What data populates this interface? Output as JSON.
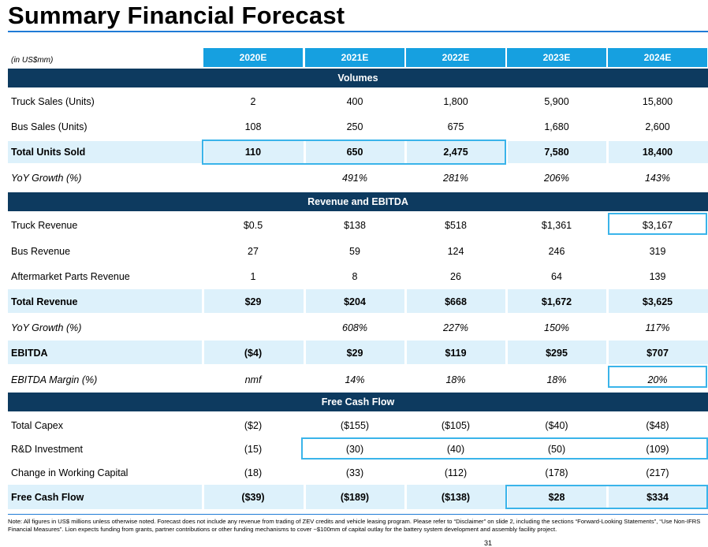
{
  "title": "Summary Financial Forecast",
  "units_note": "(in US$mm)",
  "years": [
    "2020E",
    "2021E",
    "2022E",
    "2023E",
    "2024E"
  ],
  "sections": {
    "volumes": "Volumes",
    "revenue": "Revenue and EBITDA",
    "fcf": "Free Cash Flow"
  },
  "rows": {
    "truck_sales": {
      "label": "Truck Sales (Units)",
      "values": [
        "2",
        "400",
        "1,800",
        "5,900",
        "15,800"
      ]
    },
    "bus_sales": {
      "label": "Bus Sales (Units)",
      "values": [
        "108",
        "250",
        "675",
        "1,680",
        "2,600"
      ]
    },
    "total_units": {
      "label": "Total Units Sold",
      "values": [
        "110",
        "650",
        "2,475",
        "7,580",
        "18,400"
      ]
    },
    "yoy_units": {
      "label": "YoY Growth (%)",
      "values": [
        "",
        "491%",
        "281%",
        "206%",
        "143%"
      ]
    },
    "truck_rev": {
      "label": "Truck Revenue",
      "values": [
        "$0.5",
        "$138",
        "$518",
        "$1,361",
        "$3,167"
      ]
    },
    "bus_rev": {
      "label": "Bus Revenue",
      "values": [
        "27",
        "59",
        "124",
        "246",
        "319"
      ]
    },
    "aftermarket": {
      "label": "Aftermarket Parts Revenue",
      "values": [
        "1",
        "8",
        "26",
        "64",
        "139"
      ]
    },
    "total_rev": {
      "label": "Total Revenue",
      "values": [
        "$29",
        "$204",
        "$668",
        "$1,672",
        "$3,625"
      ]
    },
    "yoy_rev": {
      "label": "YoY Growth (%)",
      "values": [
        "",
        "608%",
        "227%",
        "150%",
        "117%"
      ]
    },
    "ebitda": {
      "label": "EBITDA",
      "values": [
        "($4)",
        "$29",
        "$119",
        "$295",
        "$707"
      ]
    },
    "ebitda_margin": {
      "label": "EBITDA Margin (%)",
      "values": [
        "nmf",
        "14%",
        "18%",
        "18%",
        "20%"
      ]
    },
    "capex": {
      "label": "Total Capex",
      "values": [
        "($2)",
        "($155)",
        "($105)",
        "($40)",
        "($48)"
      ]
    },
    "rd": {
      "label": "R&D Investment",
      "values": [
        "(15)",
        "(30)",
        "(40)",
        "(50)",
        "(109)"
      ]
    },
    "wc": {
      "label": "Change in Working Capital",
      "values": [
        "(18)",
        "(33)",
        "(112)",
        "(178)",
        "(217)"
      ]
    },
    "fcf": {
      "label": "Free Cash Flow",
      "values": [
        "($39)",
        "($189)",
        "($138)",
        "$28",
        "$334"
      ]
    }
  },
  "footnote": "Note: All figures in US$ millions unless otherwise noted. Forecast does not include any revenue from trading of ZEV credits and vehicle leasing program. Please refer to “Disclaimer” on slide 2, including the sections “Forward-Looking Statements”, “Use Non-IFRS Financial Measures”. Lion expects funding from grants, partner contributions or other funding mechanisms to cover ~$100mm of capital outlay for the battery system development and assembly facility project.",
  "page_number": "31",
  "colors": {
    "section_bg": "#0d3a5f",
    "year_header_bg": "#16a0e0",
    "shade": "#ddf1fb",
    "highlight": "#3ab4ea"
  }
}
